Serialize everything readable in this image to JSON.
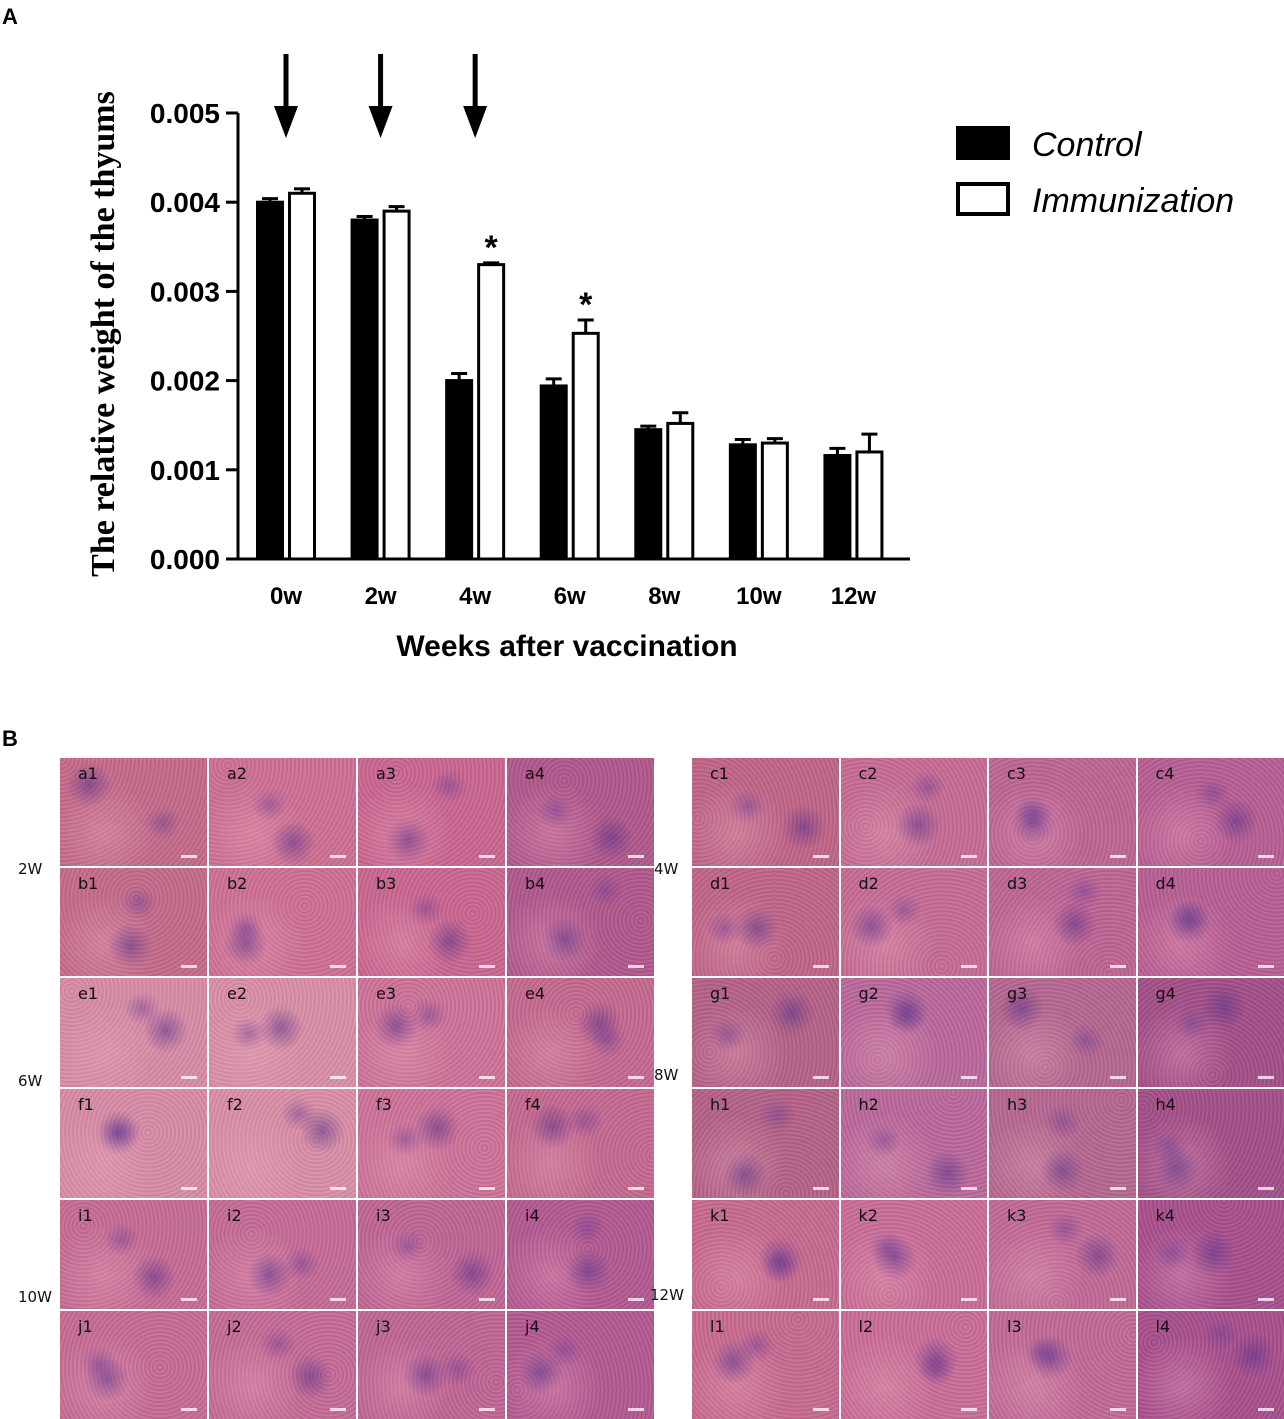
{
  "panel_a": {
    "letter": "A"
  },
  "panel_b": {
    "letter": "B"
  },
  "chart_data": {
    "type": "bar",
    "title": "",
    "xlabel": "Weeks after vaccination",
    "ylabel": "The relative weight of the thyums",
    "ylim": [
      0,
      0.005
    ],
    "yticks": [
      "0.000",
      "0.001",
      "0.002",
      "0.003",
      "0.004",
      "0.005"
    ],
    "categories": [
      "0w",
      "2w",
      "4w",
      "6w",
      "8w",
      "10w",
      "12w"
    ],
    "series": [
      {
        "name": "Control",
        "values": [
          0.004,
          0.0038,
          0.002,
          0.00194,
          0.00145,
          0.00128,
          0.00116
        ],
        "errors": [
          4e-05,
          4e-05,
          8e-05,
          8e-05,
          4e-05,
          6e-05,
          8e-05
        ],
        "fill": "#000000"
      },
      {
        "name": "Immunization",
        "values": [
          0.0041,
          0.0039,
          0.0033,
          0.00253,
          0.00152,
          0.0013,
          0.0012
        ],
        "errors": [
          5e-05,
          5e-05,
          2e-05,
          0.00015,
          0.00012,
          5e-05,
          0.0002
        ],
        "fill": "#ffffff"
      }
    ],
    "annotations": [
      {
        "category": "4w",
        "series": "Immunization",
        "text": "*"
      },
      {
        "category": "6w",
        "series": "Immunization",
        "text": "*"
      }
    ],
    "arrows_at": [
      "0w",
      "2w",
      "4w"
    ],
    "legend_position": "top-right"
  },
  "histology": {
    "blocks": [
      {
        "week": "2W",
        "rows": [
          [
            "a1",
            "a2",
            "a3",
            "a4"
          ],
          [
            "b1",
            "b2",
            "b3",
            "b4"
          ]
        ],
        "palette": [
          "#c46a8a",
          "#ce6f93",
          "#c96590",
          "#b1578c"
        ]
      },
      {
        "week": "4W",
        "rows": [
          [
            "c1",
            "c2",
            "c3",
            "c4"
          ],
          [
            "d1",
            "d2",
            "d3",
            "d4"
          ]
        ],
        "palette": [
          "#c06488",
          "#c66c94",
          "#be6494",
          "#b75e92"
        ]
      },
      {
        "week": "6W",
        "rows": [
          [
            "e1",
            "e2",
            "e3",
            "e4"
          ],
          [
            "f1",
            "f2",
            "f3",
            "f4"
          ]
        ],
        "palette": [
          "#d88ba6",
          "#d98ea6",
          "#cc7198",
          "#c4688f"
        ]
      },
      {
        "week": "8W",
        "rows": [
          [
            "g1",
            "g2",
            "g3",
            "g4"
          ],
          [
            "h1",
            "h2",
            "h3",
            "h4"
          ]
        ],
        "palette": [
          "#b46187",
          "#b9689a",
          "#b5668f",
          "#a24f88"
        ]
      },
      {
        "week": "10W",
        "rows": [
          [
            "i1",
            "i2",
            "i3",
            "i4"
          ],
          [
            "j1",
            "j2",
            "j3",
            "j4"
          ]
        ],
        "palette": [
          "#c66c95",
          "#c56a96",
          "#bf6494",
          "#b35890"
        ]
      },
      {
        "week": "12W",
        "rows": [
          [
            "k1",
            "k2",
            "k3",
            "k4"
          ],
          [
            "l1",
            "l2",
            "l3",
            "l4"
          ]
        ],
        "palette": [
          "#c7698f",
          "#c96d97",
          "#c16a97",
          "#a84f8d"
        ]
      }
    ]
  }
}
